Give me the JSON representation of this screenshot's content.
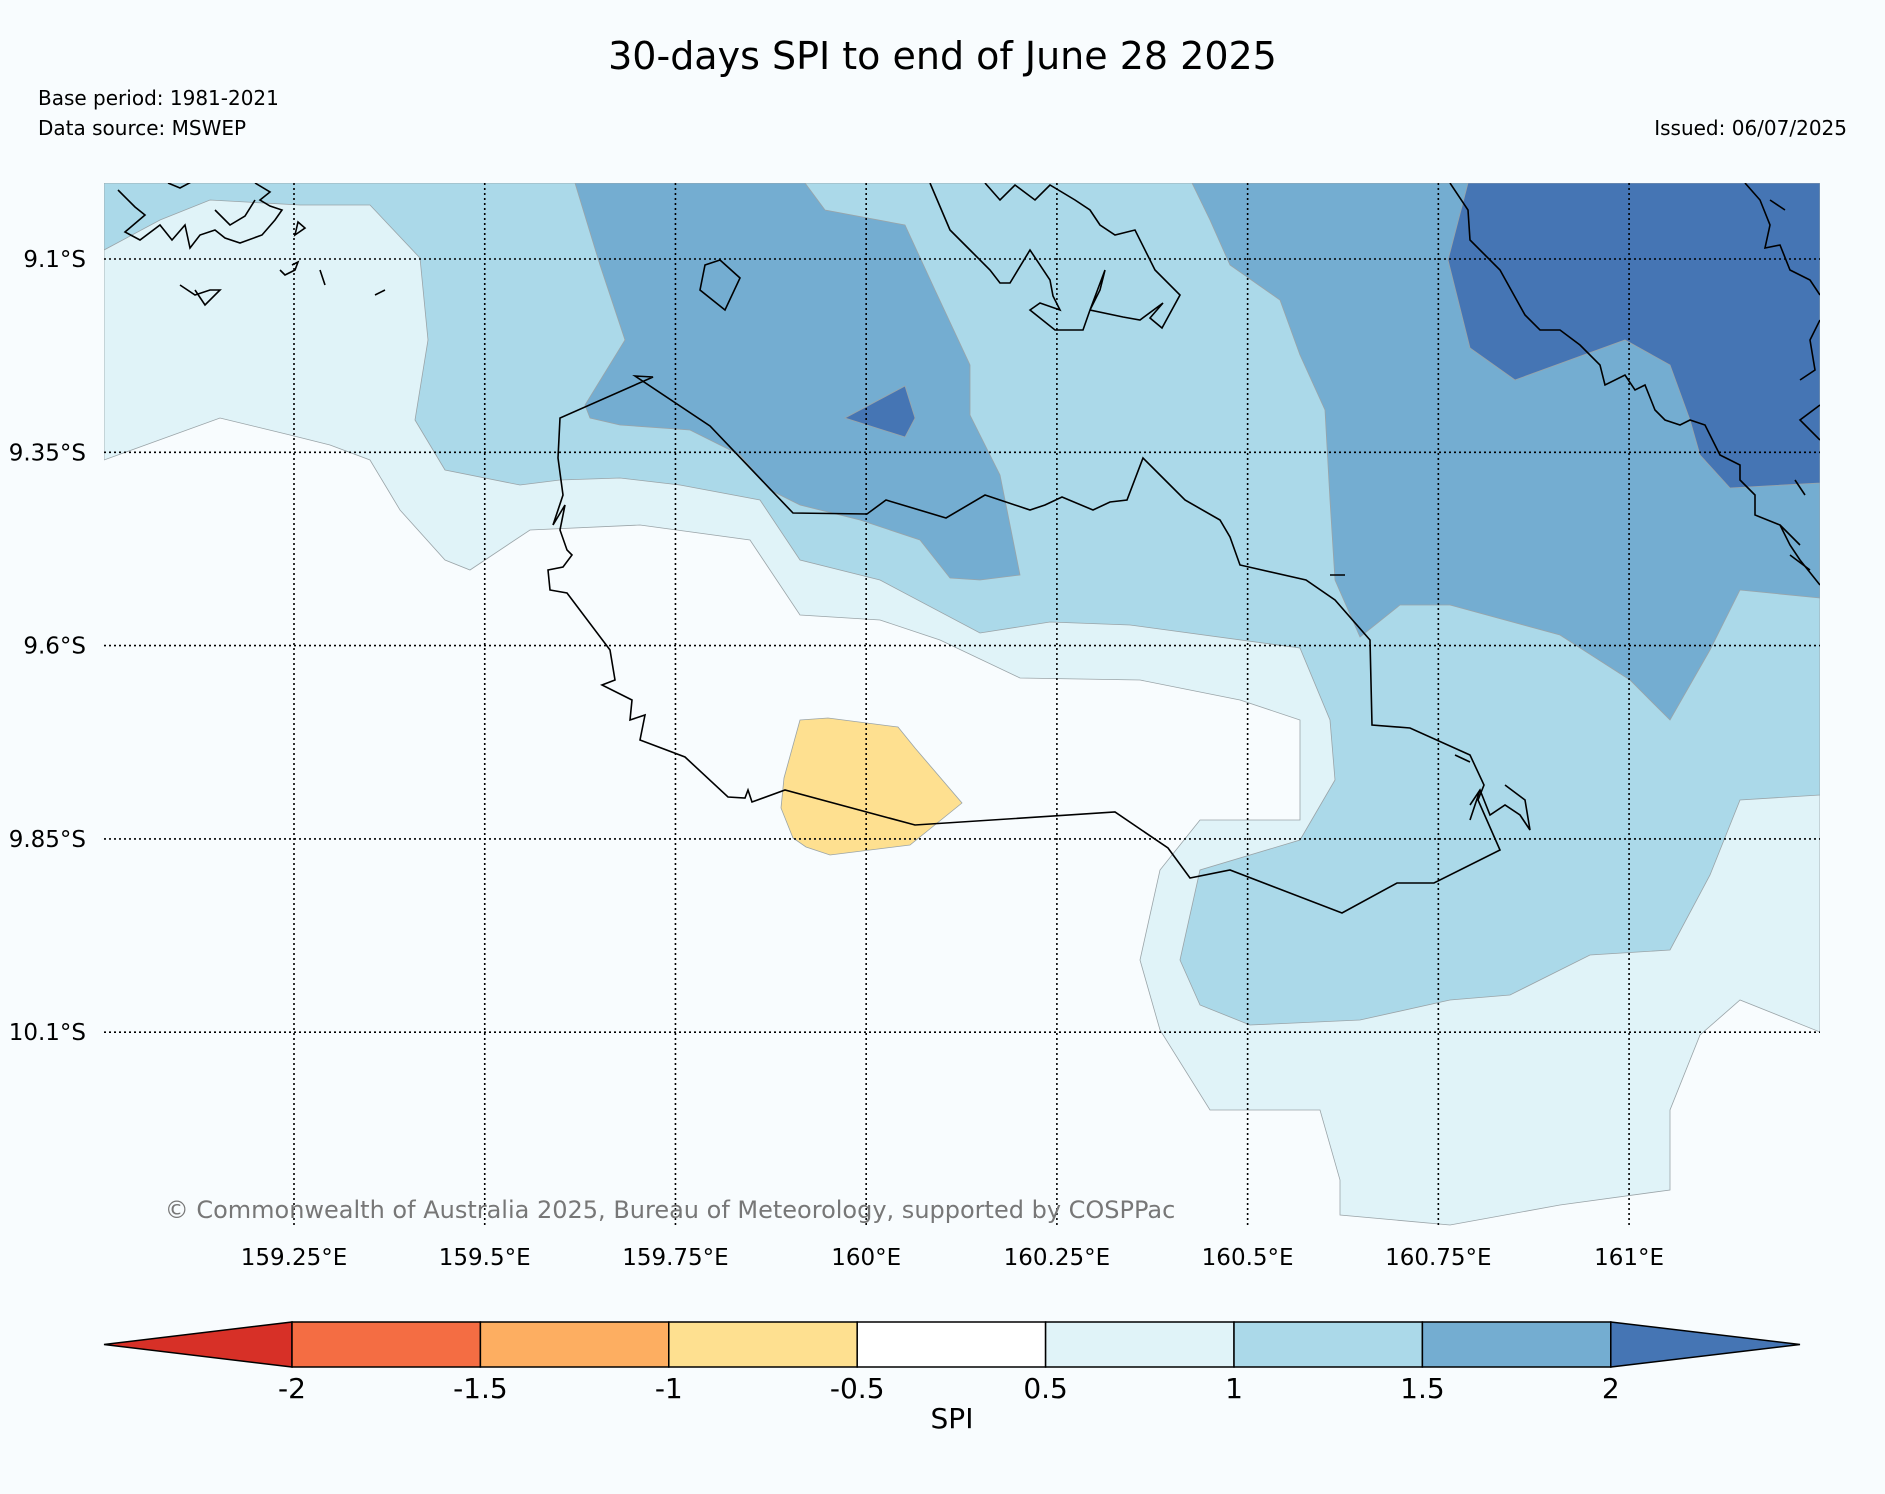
{
  "header": {
    "title": "30-days SPI to end of June 28 2025",
    "base_period": "Base period: 1981-2021",
    "data_source": "Data source: MSWEP",
    "issued": "Issued: 06/07/2025"
  },
  "map": {
    "lon_ticks": [
      {
        "value": 159.25,
        "label": "159.25°E"
      },
      {
        "value": 159.5,
        "label": "159.5°E"
      },
      {
        "value": 159.75,
        "label": "159.75°E"
      },
      {
        "value": 160.0,
        "label": "160°E"
      },
      {
        "value": 160.25,
        "label": "160.25°E"
      },
      {
        "value": 160.5,
        "label": "160.5°E"
      },
      {
        "value": 160.75,
        "label": "160.75°E"
      },
      {
        "value": 161.0,
        "label": "161°E"
      }
    ],
    "lat_ticks": [
      {
        "value": -9.1,
        "label": "9.1°S"
      },
      {
        "value": -9.35,
        "label": "9.35°S"
      },
      {
        "value": -9.6,
        "label": "9.6°S"
      },
      {
        "value": -9.85,
        "label": "9.85°S"
      },
      {
        "value": -10.1,
        "label": "10.1°S"
      }
    ],
    "copyright": "© Commonwealth of Australia 2025, Bureau of Meteorology, supported by COSPPac"
  },
  "colorbar": {
    "label": "SPI",
    "ticks": [
      "-2",
      "-1.5",
      "-1",
      "-0.5",
      "0.5",
      "1",
      "1.5",
      "2"
    ],
    "colors": {
      "lt_-2": "#d73027",
      "-2_-1.5": "#f46d43",
      "-1.5_-1": "#fdae61",
      "-1_-0.5": "#fee090",
      "-0.5_0.5": "#ffffff",
      "0.5_1": "#e0f3f8",
      "1_1.5": "#abd9e9",
      "1.5_2": "#74add1",
      "gt_2": "#4575b4"
    }
  }
}
